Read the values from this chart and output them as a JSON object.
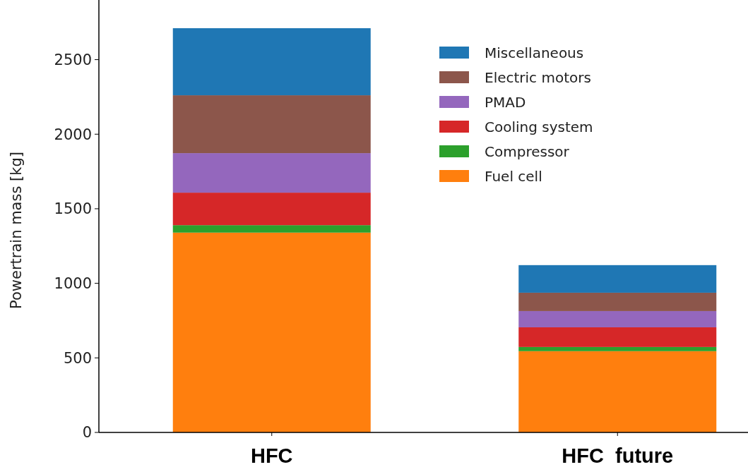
{
  "chart_data": {
    "type": "bar",
    "stacked": true,
    "ylabel": "Powertrain mass [kg]",
    "categories": [
      "HFC",
      "HFC  future"
    ],
    "ylim": [
      0,
      2900
    ],
    "yticks": [
      0,
      500,
      1000,
      1500,
      2000,
      2500
    ],
    "legend": "top right",
    "series": [
      {
        "name": "Fuel cell",
        "color": "#ff7f0e",
        "values": [
          1340,
          545
        ]
      },
      {
        "name": "Compressor",
        "color": "#2ca02c",
        "values": [
          50,
          28
        ]
      },
      {
        "name": "Cooling system",
        "color": "#d62728",
        "values": [
          218,
          132
        ]
      },
      {
        "name": "PMAD",
        "color": "#9467bd",
        "values": [
          265,
          109
        ]
      },
      {
        "name": "Electric motors",
        "color": "#8c564b",
        "values": [
          388,
          123
        ]
      },
      {
        "name": "Miscellaneous",
        "color": "#1f77b4",
        "values": [
          450,
          185
        ]
      }
    ]
  }
}
